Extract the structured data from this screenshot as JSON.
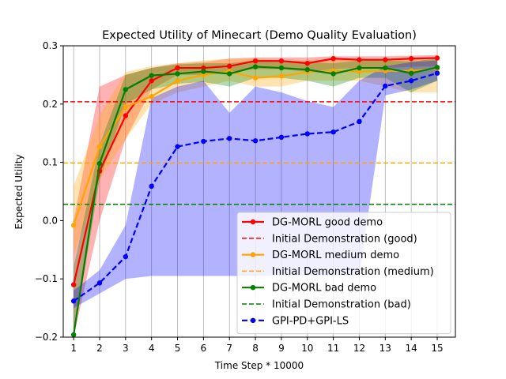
{
  "chart_data": {
    "type": "line",
    "title": "Expected Utility of Minecart (Demo Quality Evaluation)",
    "xlabel": "Time Step * 10000",
    "ylabel": "Expected Utility",
    "xlim": [
      0.6,
      15.7
    ],
    "ylim": [
      -0.2,
      0.3
    ],
    "x": [
      1,
      2,
      3,
      4,
      5,
      6,
      7,
      8,
      9,
      10,
      11,
      12,
      13,
      14,
      15
    ],
    "yticks": [
      -0.2,
      -0.1,
      0.0,
      0.1,
      0.2,
      0.3
    ],
    "ytick_labels": [
      "−0.2",
      "−0.1",
      "0.0",
      "0.1",
      "0.2",
      "0.3"
    ],
    "grid": "x",
    "legend_position": "lower-right",
    "series": [
      {
        "name": "DG-MORL good demo",
        "color": "#ff0000",
        "values": [
          -0.11,
          0.085,
          0.18,
          0.24,
          0.262,
          0.262,
          0.265,
          0.274,
          0.274,
          0.27,
          0.278,
          0.276,
          0.276,
          0.278,
          0.279
        ],
        "band_lower": [
          -0.2,
          0.0,
          0.14,
          0.225,
          0.25,
          0.25,
          0.255,
          0.26,
          0.26,
          0.255,
          0.26,
          0.262,
          0.262,
          0.264,
          0.265
        ],
        "band_upper": [
          0.0,
          0.23,
          0.25,
          0.262,
          0.27,
          0.272,
          0.278,
          0.28,
          0.28,
          0.28,
          0.282,
          0.282,
          0.282,
          0.283,
          0.284
        ]
      },
      {
        "name": "DG-MORL medium demo",
        "color": "#ffa500",
        "values": [
          -0.008,
          0.127,
          0.195,
          0.213,
          0.24,
          0.25,
          0.256,
          0.245,
          0.248,
          0.255,
          0.257,
          0.256,
          0.257,
          0.257,
          0.261
        ],
        "band_lower": [
          -0.06,
          0.07,
          0.14,
          0.2,
          0.22,
          0.23,
          0.24,
          0.23,
          0.23,
          0.24,
          0.24,
          0.24,
          0.23,
          0.22,
          0.22
        ],
        "band_upper": [
          0.06,
          0.18,
          0.255,
          0.265,
          0.27,
          0.275,
          0.278,
          0.278,
          0.275,
          0.275,
          0.277,
          0.275,
          0.275,
          0.276,
          0.276
        ]
      },
      {
        "name": "DG-MORL bad demo",
        "color": "#008000",
        "values": [
          -0.196,
          0.098,
          0.225,
          0.249,
          0.252,
          0.256,
          0.252,
          0.264,
          0.262,
          0.259,
          0.252,
          0.262,
          0.262,
          0.253,
          0.263
        ],
        "band_lower": [
          -0.2,
          0.07,
          0.2,
          0.225,
          0.235,
          0.238,
          0.23,
          0.245,
          0.245,
          0.24,
          0.23,
          0.245,
          0.245,
          0.22,
          0.24
        ],
        "band_upper": [
          -0.08,
          0.13,
          0.25,
          0.262,
          0.268,
          0.27,
          0.27,
          0.275,
          0.275,
          0.272,
          0.27,
          0.275,
          0.275,
          0.273,
          0.278
        ]
      },
      {
        "name": "GPI-PD+GPI-LS",
        "color": "#0000ff",
        "values": [
          -0.138,
          -0.107,
          -0.062,
          0.059,
          0.127,
          0.136,
          0.141,
          0.137,
          0.143,
          0.149,
          0.152,
          0.17,
          0.231,
          0.24,
          0.253
        ],
        "band_lower": [
          -0.15,
          -0.125,
          -0.1,
          -0.095,
          -0.095,
          -0.095,
          -0.095,
          -0.095,
          -0.095,
          -0.095,
          -0.095,
          -0.095,
          0.215,
          0.225,
          0.24
        ],
        "band_upper": [
          -0.12,
          -0.085,
          -0.008,
          0.21,
          0.23,
          0.24,
          0.185,
          0.23,
          0.22,
          0.205,
          0.195,
          0.24,
          0.265,
          0.272,
          0.275
        ]
      }
    ],
    "hlines": [
      {
        "name": "Initial Demonstration (good)",
        "value": 0.204,
        "color": "#ff0000"
      },
      {
        "name": "Initial Demonstration (medium)",
        "value": 0.099,
        "color": "#ffa500"
      },
      {
        "name": "Initial Demonstration (bad)",
        "value": 0.028,
        "color": "#008000"
      }
    ],
    "legend": [
      {
        "label": "DG-MORL good demo",
        "kind": "line",
        "color": "#ff0000"
      },
      {
        "label": "Initial Demonstration (good)",
        "kind": "dash",
        "color": "#ff0000"
      },
      {
        "label": "DG-MORL medium demo",
        "kind": "line",
        "color": "#ffa500"
      },
      {
        "label": "Initial Demonstration (medium)",
        "kind": "dash",
        "color": "#ffa500"
      },
      {
        "label": "DG-MORL bad demo",
        "kind": "line",
        "color": "#008000"
      },
      {
        "label": "Initial Demonstration (bad)",
        "kind": "dash",
        "color": "#008000"
      },
      {
        "label": "GPI-PD+GPI-LS",
        "kind": "dashline",
        "color": "#0000ff"
      }
    ]
  }
}
